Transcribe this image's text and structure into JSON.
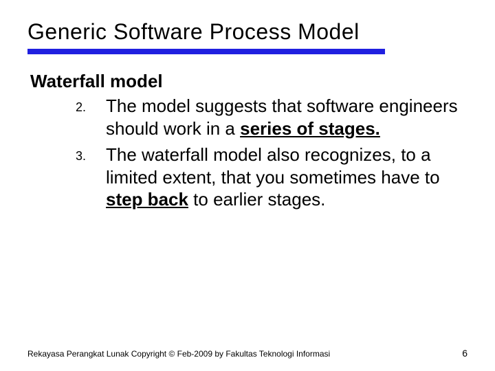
{
  "title": "Generic Software Process Model",
  "subtitle": "Waterfall model",
  "items": [
    {
      "num": "2.",
      "pre": "The model suggests that software engineers should work in a ",
      "emph": "series of stages.",
      "post": ""
    },
    {
      "num": "3.",
      "pre": "The waterfall model also recognizes, to a limited extent, that you sometimes have to ",
      "emph": "step back",
      "post": " to earlier stages."
    }
  ],
  "footer": "Rekayasa Perangkat Lunak Copyright © Feb-2009 by Fakultas Teknologi Informasi",
  "page_number": "6",
  "colors": {
    "underline": "#2020e0",
    "text": "#000000",
    "background": "#ffffff"
  },
  "typography": {
    "title_fontsize": 32,
    "subtitle_fontsize": 26,
    "body_fontsize": 26,
    "footer_fontsize": 12
  }
}
